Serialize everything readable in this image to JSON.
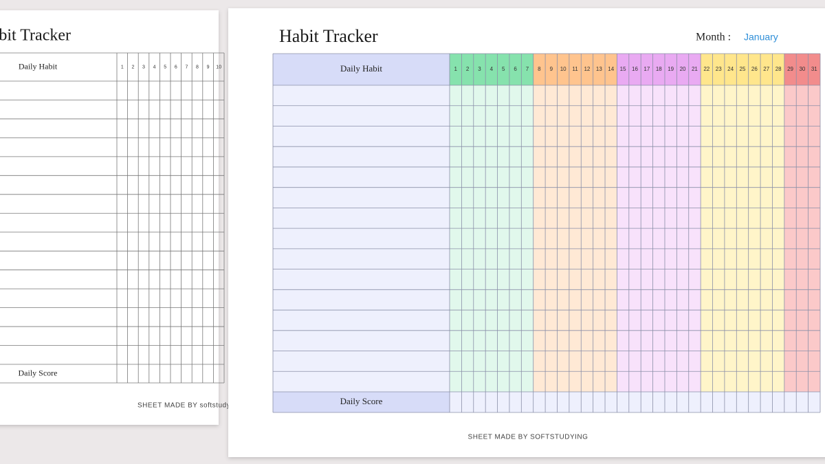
{
  "back_sheet": {
    "title": "Habit Tracker",
    "header": "Daily Habit",
    "days": [
      1,
      2,
      3,
      4,
      5,
      6,
      7,
      8,
      9,
      10
    ],
    "footer_label": "Daily Score",
    "credit": "SHEET MADE BY softstudying"
  },
  "front_sheet": {
    "title": "Habit Tracker",
    "month_label": "Month :",
    "month": "January",
    "header": "Daily Habit",
    "days": [
      1,
      2,
      3,
      4,
      5,
      6,
      7,
      8,
      9,
      10,
      11,
      12,
      13,
      14,
      15,
      16,
      17,
      18,
      19,
      20,
      21,
      22,
      23,
      24,
      25,
      26,
      27,
      28,
      29,
      30,
      31
    ],
    "footer_label": "Daily Score",
    "credit": "SHEET MADE BY SOFTSTUDYING"
  }
}
